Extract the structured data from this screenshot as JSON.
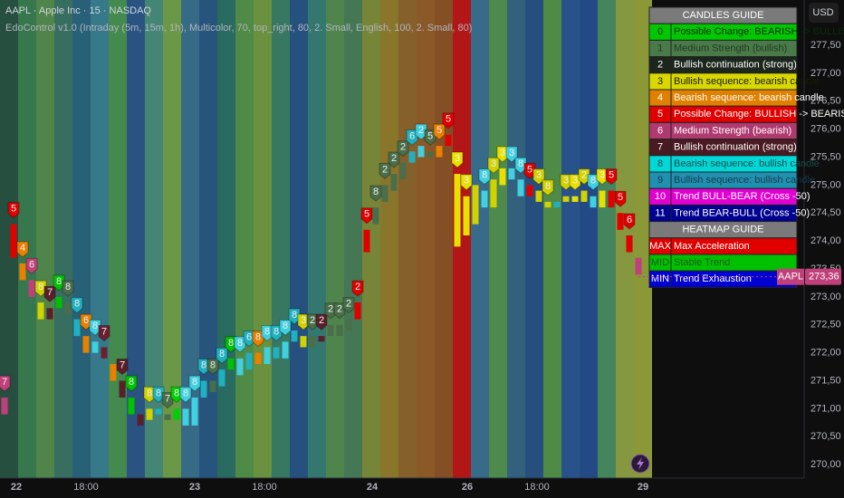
{
  "header": {
    "symbol": "AAPL · Apple Inc · 15 · NASDAQ",
    "indicator": "EdoControl v1.0 (Intraday (5m, 15m, 1h), Multicolor, 70, top_right, 80, 2. Small, English, 100, 2. Small, 80)",
    "currency": "USD"
  },
  "chart_data": {
    "type": "candlestick",
    "open": [
      270.9,
      273.7,
      273.6,
      273.3,
      272.9,
      272.6,
      272.8,
      272.9,
      272.6,
      272.3,
      272.0,
      272.1,
      271.8,
      271.5,
      271.2,
      270.9,
      270.8,
      271.0,
      270.9,
      270.8,
      271.0,
      270.7,
      271.2,
      271.5,
      271.4,
      271.7,
      271.9,
      271.7,
      272.0,
      271.8,
      272.1,
      271.9,
      272.2,
      272.3,
      272.1,
      272.3,
      272.3,
      272.5,
      272.4,
      272.6,
      273.8,
      274.3,
      274.7,
      274.9,
      275.1,
      275.4,
      275.5,
      275.6,
      275.5,
      275.7,
      275.2,
      274.8,
      274.3,
      274.9,
      274.6,
      275.0,
      275.3,
      275.1,
      274.8,
      274.9,
      274.7,
      274.6,
      274.7,
      274.8,
      274.7,
      274.8,
      274.6,
      274.9,
      274.5,
      274.1,
      273.7
    ],
    "close": [
      271.2,
      274.3,
      273.3,
      273.0,
      272.6,
      272.8,
      273.0,
      272.7,
      272.3,
      272.0,
      272.2,
      271.9,
      271.5,
      271.2,
      270.9,
      270.7,
      271.0,
      270.9,
      270.8,
      271.0,
      270.7,
      271.2,
      271.5,
      271.3,
      271.7,
      271.9,
      271.6,
      272.0,
      271.8,
      272.1,
      271.9,
      272.2,
      272.4,
      272.1,
      272.3,
      272.2,
      272.5,
      272.3,
      272.6,
      272.9,
      274.2,
      274.6,
      275.0,
      275.2,
      275.4,
      275.6,
      275.7,
      275.5,
      275.7,
      275.9,
      273.9,
      274.1,
      275.0,
      274.6,
      275.1,
      275.3,
      275.1,
      274.8,
      275.0,
      274.7,
      274.6,
      274.7,
      274.8,
      274.7,
      274.9,
      274.6,
      274.9,
      274.6,
      274.2,
      273.8,
      273.4
    ],
    "colors": [
      "#c0407a",
      "#e00000",
      "#e88000",
      "#c0407a",
      "#d2d200",
      "#5a1f2a",
      "#00c000",
      "#4a6e4a",
      "#20b0c0",
      "#e88000",
      "#40d0e0",
      "#6b2030",
      "#e88000",
      "#5a1f2a",
      "#00c000",
      "#5a1f2a",
      "#d2d200",
      "#20b0c0",
      "#4a6e4a",
      "#00d000",
      "#40d0e0",
      "#40d0e0",
      "#20b0c0",
      "#4a6e4a",
      "#20b0c0",
      "#00c000",
      "#40d0e0",
      "#20b0c0",
      "#e88000",
      "#40d0e0",
      "#20b0c0",
      "#40d0e0",
      "#20b0c0",
      "#d2d200",
      "#4a6e4a",
      "#5a1f2a",
      "#4a6e4a",
      "#4a6e4a",
      "#4a6e4a",
      "#e00000",
      "#e00000",
      "#4a6e4a",
      "#4a6e4a",
      "#4a6e4a",
      "#4a6e4a",
      "#20b0c0",
      "#40d0e0",
      "#4a6e4a",
      "#e88000",
      "#e00000",
      "#e8e000",
      "#e8e000",
      "#d2d200",
      "#40d0e0",
      "#d2d200",
      "#e8e000",
      "#40d0e0",
      "#40d0e0",
      "#e00000",
      "#d2d200",
      "#d2d200",
      "#20b0c0",
      "#d2d200",
      "#e8e000",
      "#d2d200",
      "#40d0e0",
      "#e8e000",
      "#e00000",
      "#e00000",
      "#e00000",
      "#c0407a"
    ],
    "signal_labels": [
      "7",
      "5",
      "4",
      "6",
      "8",
      "7",
      "8",
      "8",
      "8",
      "6",
      "8",
      "7",
      null,
      "7",
      "8",
      null,
      "8",
      "8",
      "7",
      "8",
      "8",
      "8",
      "8",
      "8",
      "8",
      "8",
      "8",
      "6",
      "8",
      "8",
      "8",
      "8",
      "8",
      "3",
      "2",
      "2",
      "2",
      "2",
      "2",
      "2",
      "5",
      "8",
      "2",
      "2",
      "2",
      "6",
      "2",
      "5",
      "5",
      "5",
      "3",
      "3",
      null,
      "8",
      "3",
      "3",
      "3",
      "8",
      "5",
      "3",
      "8",
      null,
      "3",
      "3",
      "2",
      "8",
      "3",
      "5",
      "5",
      "6",
      null
    ],
    "heatmap_colors": [
      "#2a5a48",
      "#3d8a58",
      "#5a9a55",
      "#3f7f6e",
      "#2d6e8a",
      "#3d8ca0",
      "#4ea05a",
      "#2f5f95",
      "#4e9a88",
      "#7ab050",
      "#3e7a9a",
      "#2a6090",
      "#2e7a70",
      "#5aa050",
      "#7aa848",
      "#3f8a70",
      "#2a5c90",
      "#3a8a80",
      "#5a9a58",
      "#4f8a60",
      "#8a9a40",
      "#a08830",
      "#9a6e30",
      "#a0662c",
      "#9a5a2a",
      "#d01818",
      "#3f7aa0",
      "#5aa058",
      "#3a7090",
      "#2a5a90",
      "#5aa050",
      "#2e5ea0",
      "#28559a",
      "#4e9a68",
      "#9ab048",
      "#a0b040"
    ],
    "xlim": [
      -0.5,
      88.3
    ],
    "xticks": [
      {
        "value": 1.3,
        "label": "22"
      },
      {
        "value": 9,
        "label": "18:00"
      },
      {
        "value": 21,
        "label": "23"
      },
      {
        "value": 28.7,
        "label": "18:00"
      },
      {
        "value": 40.6,
        "label": "24"
      },
      {
        "value": 51.1,
        "label": "26"
      },
      {
        "value": 58.8,
        "label": "18:00"
      },
      {
        "value": 70.5,
        "label": "29"
      }
    ],
    "ylim": [
      269.76,
      278.31
    ],
    "yticks": [
      {
        "value": 270,
        "label": "270,00"
      },
      {
        "value": 270.5,
        "label": "270,50"
      },
      {
        "value": 271,
        "label": "271,00"
      },
      {
        "value": 271.5,
        "label": "271,50"
      },
      {
        "value": 272,
        "label": "272,00"
      },
      {
        "value": 272.5,
        "label": "272,50"
      },
      {
        "value": 273,
        "label": "273,00"
      },
      {
        "value": 273.5,
        "label": "273,50"
      },
      {
        "value": 274,
        "label": "274,00"
      },
      {
        "value": 274.5,
        "label": "274,50"
      },
      {
        "value": 275,
        "label": "275,00"
      },
      {
        "value": 275.5,
        "label": "275,50"
      },
      {
        "value": 276,
        "label": "276,00"
      },
      {
        "value": 276.5,
        "label": "276,50"
      },
      {
        "value": 277,
        "label": "277,00"
      },
      {
        "value": 277.5,
        "label": "277,50"
      }
    ],
    "grid": false,
    "last_price": {
      "value": 273.36,
      "label": "273,36",
      "symbol": "AAPL",
      "color": "#c0407a"
    }
  },
  "guide": {
    "candles_title": "CANDLES GUIDE",
    "candles": [
      {
        "code": "0",
        "label": "Possible Change: BEARISH -> BULLISH",
        "color": "#00c800",
        "text_color": "#0a2a0a"
      },
      {
        "code": "1",
        "label": "Medium Strength (bullish)",
        "color": "#4a7a4a",
        "text_color": "#1e3a1e"
      },
      {
        "code": "2",
        "label": "Bullish continuation (strong)",
        "color": "#1c261c",
        "text_color": "#ffffff"
      },
      {
        "code": "3",
        "label": "Bullish sequence: bearish candle",
        "color": "#d8d800",
        "text_color": "#1a1a00"
      },
      {
        "code": "4",
        "label": "Bearish sequence: bearish candle",
        "color": "#e08000",
        "text_color": "#ffffff"
      },
      {
        "code": "5",
        "label": "Possible Change: BULLISH -> BEARISH",
        "color": "#e00000",
        "text_color": "#ffffff"
      },
      {
        "code": "6",
        "label": "Medium Strength (bearish)",
        "color": "#b03a70",
        "text_color": "#ffffff"
      },
      {
        "code": "7",
        "label": "Bullish continuation (strong)",
        "color": "#4a1a22",
        "text_color": "#ffffff"
      },
      {
        "code": "8",
        "label": "Bearish sequence: bullish candle",
        "color": "#00d8d8",
        "text_color": "#1a4a4a"
      },
      {
        "code": "9",
        "label": "Bullish sequence: bullish candle",
        "color": "#2090b0",
        "text_color": "#1a3a4a"
      },
      {
        "code": "10",
        "label": "Trend BULL-BEAR (Cross -50)",
        "color": "#e000d0",
        "text_color": "#ffffff"
      },
      {
        "code": "11",
        "label": "Trend BEAR-BULL (Cross -50)",
        "color": "#000090",
        "text_color": "#ffffff"
      }
    ],
    "heatmap_title": "HEATMAP GUIDE",
    "heatmap": [
      {
        "code": "MAX",
        "label": "Max Acceleration",
        "color": "#e00000",
        "text_color": "#ffffff"
      },
      {
        "code": "MID",
        "label": "Stable Trend",
        "color": "#00c000",
        "text_color": "#1a5a1a"
      },
      {
        "code": "MIN",
        "label": "Trend Exhaustion",
        "color": "#0000d0",
        "text_color": "#ffffff"
      }
    ]
  }
}
